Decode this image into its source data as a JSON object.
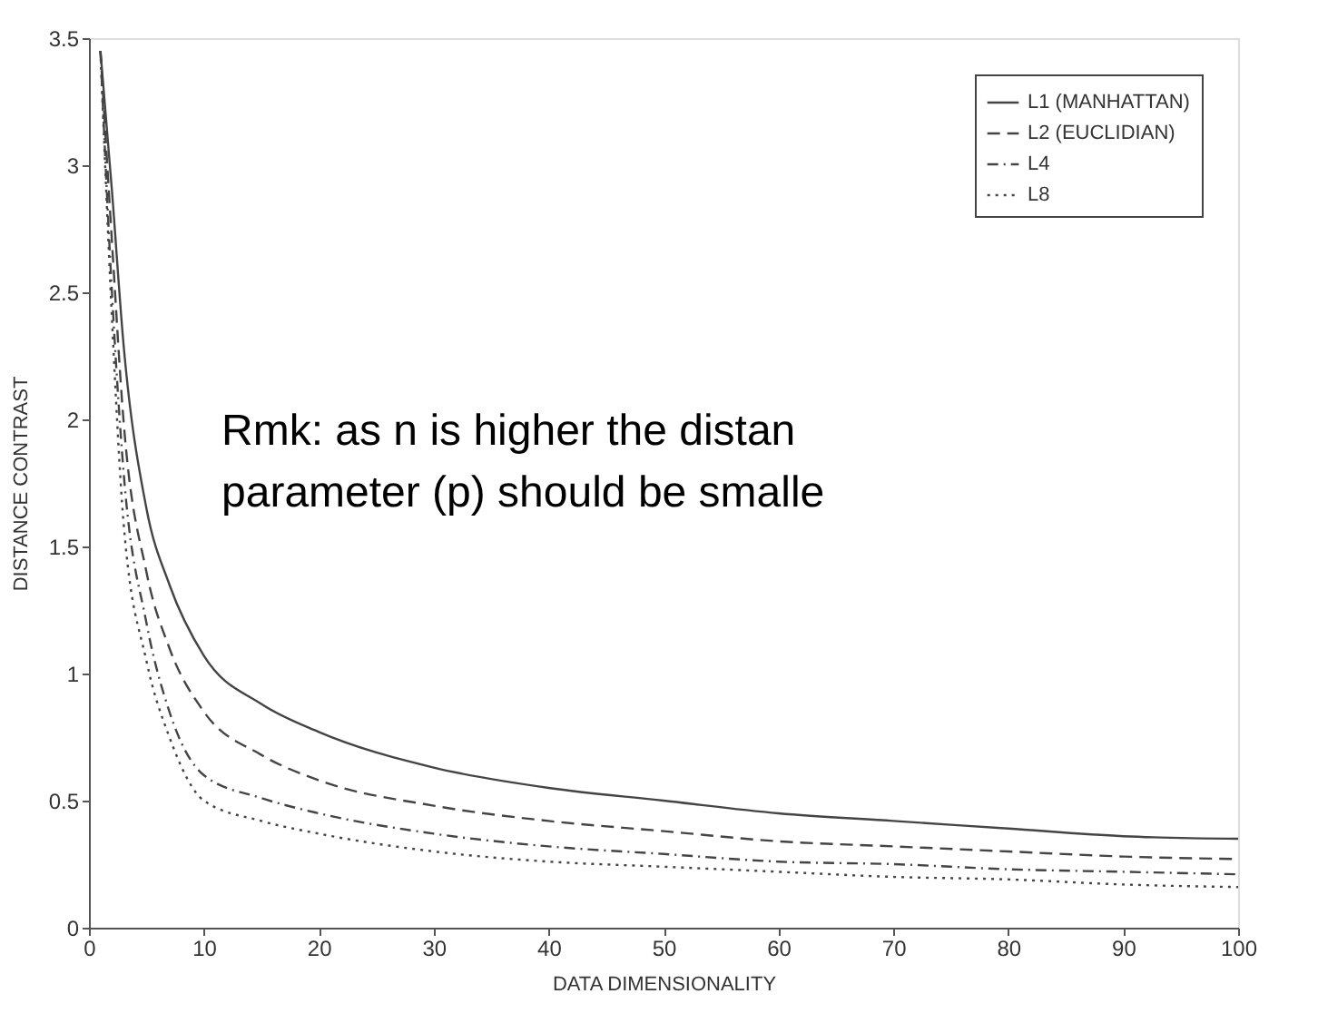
{
  "chart_data": {
    "type": "line",
    "xlabel": "DATA DIMENSIONALITY",
    "ylabel": "DISTANCE CONTRAST",
    "x": [
      1,
      2,
      3,
      5,
      7,
      10,
      15,
      20,
      30,
      40,
      50,
      60,
      70,
      80,
      90,
      100
    ],
    "series": [
      {
        "name": "L1 (MANHATTAN)",
        "color": "#444444",
        "line_style": "solid",
        "values": [
          3.45,
          2.9,
          2.3,
          1.65,
          1.35,
          1.07,
          0.88,
          0.77,
          0.63,
          0.55,
          0.5,
          0.45,
          0.42,
          0.39,
          0.36,
          0.35
        ]
      },
      {
        "name": "L2 (EUCLIDIAN)",
        "color": "#444444",
        "line_style": "dashed",
        "values": [
          3.45,
          2.7,
          2.0,
          1.4,
          1.1,
          0.85,
          0.68,
          0.58,
          0.48,
          0.42,
          0.38,
          0.34,
          0.32,
          0.3,
          0.28,
          0.27
        ]
      },
      {
        "name": "L4",
        "color": "#444444",
        "line_style": "dashdot",
        "values": [
          3.45,
          2.5,
          1.8,
          1.2,
          0.85,
          0.6,
          0.51,
          0.45,
          0.37,
          0.32,
          0.29,
          0.26,
          0.25,
          0.23,
          0.22,
          0.21
        ]
      },
      {
        "name": "L8",
        "color": "#444444",
        "line_style": "dotted",
        "values": [
          3.45,
          2.4,
          1.6,
          1.05,
          0.75,
          0.5,
          0.42,
          0.37,
          0.3,
          0.26,
          0.24,
          0.22,
          0.2,
          0.19,
          0.17,
          0.16
        ]
      }
    ],
    "xlim": [
      0,
      100
    ],
    "xticks": [
      0,
      10,
      20,
      30,
      40,
      50,
      60,
      70,
      80,
      90,
      100
    ],
    "ylim": [
      0,
      3.5
    ],
    "yticks": [
      0,
      0.5,
      1,
      1.5,
      2,
      2.5,
      3,
      3.5
    ],
    "legend": "top right",
    "grid": false,
    "marker": "none",
    "annotations": [
      "Rmk:  as n is higher the distan\nparameter (p) should be smalle"
    ]
  }
}
